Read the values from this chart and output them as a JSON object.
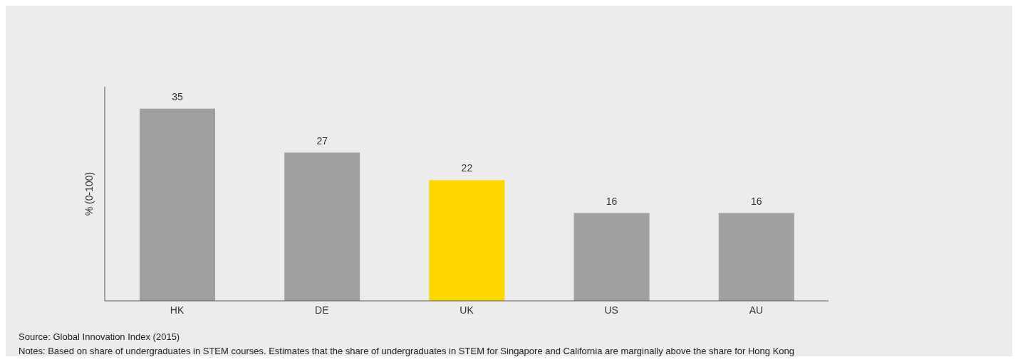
{
  "chart_data": {
    "type": "bar",
    "ylabel": "% (0-100)",
    "categories": [
      "HK",
      "DE",
      "UK",
      "US",
      "AU"
    ],
    "values": [
      35,
      27,
      22,
      16,
      16
    ],
    "colors": [
      "#a0a0a0",
      "#a0a0a0",
      "#ffd700",
      "#a0a0a0",
      "#a0a0a0"
    ],
    "ylim": [
      0,
      39
    ],
    "data_labels": true,
    "annotations": [
      "Source: Global Innovation Index (2015)",
      "Notes: Based on share of undergraduates in STEM courses. Estimates that the share of undergraduates in STEM for Singapore and California are marginally above the share for Hong Kong"
    ]
  }
}
